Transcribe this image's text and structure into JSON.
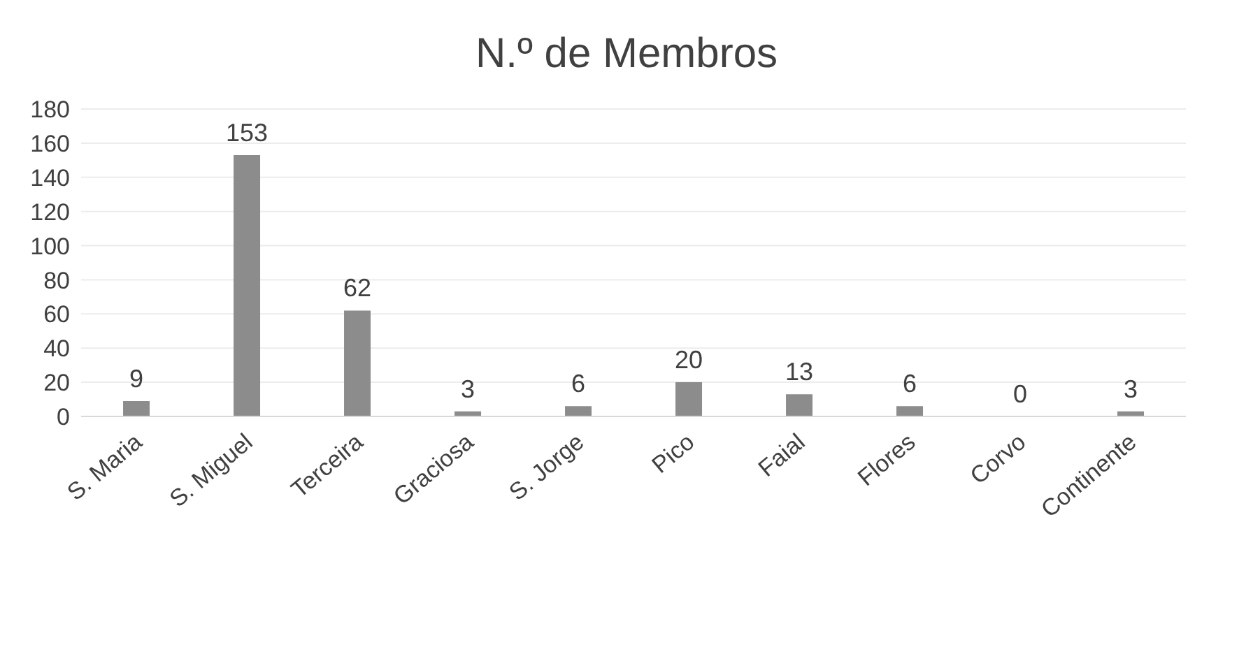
{
  "chart_data": {
    "type": "bar",
    "title": "N.º de Membros",
    "categories": [
      "S. Maria",
      "S. Miguel",
      "Terceira",
      "Graciosa",
      "S. Jorge",
      "Pico",
      "Faial",
      "Flores",
      "Corvo",
      "Continente"
    ],
    "values": [
      9,
      153,
      62,
      3,
      6,
      20,
      13,
      6,
      0,
      3
    ],
    "color": "#8c8c8c",
    "ylim": [
      0,
      180
    ],
    "yticks": [
      0,
      20,
      40,
      60,
      80,
      100,
      120,
      140,
      160,
      180
    ],
    "grid": "y",
    "data_labels": true
  }
}
